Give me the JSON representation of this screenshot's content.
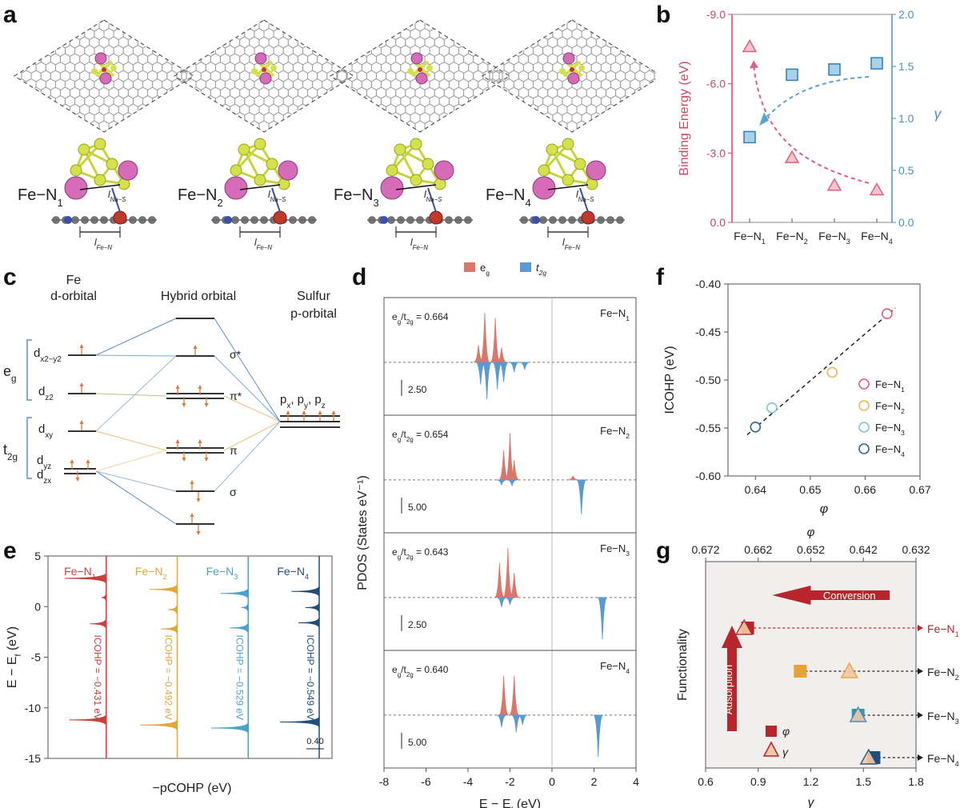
{
  "panels": {
    "a": "a",
    "b": "b",
    "c": "c",
    "d": "d",
    "e": "e",
    "f": "f",
    "g": "g"
  },
  "panel_a": {
    "structures": [
      {
        "label": "Fe−N",
        "sub": "1",
        "bond_top": "l",
        "bond_top_sub": "Na−S",
        "bond_bottom": "l",
        "bond_bottom_sub": "Fe−N"
      },
      {
        "label": "Fe−N",
        "sub": "2",
        "bond_top": "l",
        "bond_top_sub": "Na−S",
        "bond_bottom": "l",
        "bond_bottom_sub": "Fe−N"
      },
      {
        "label": "Fe−N",
        "sub": "3",
        "bond_top": "l",
        "bond_top_sub": "Na−S",
        "bond_bottom": "l",
        "bond_bottom_sub": "Fe−N"
      },
      {
        "label": "Fe−N",
        "sub": "4",
        "bond_top": "l",
        "bond_top_sub": "Na−S",
        "bond_bottom": "l",
        "bond_bottom_sub": "Fe−N"
      }
    ],
    "colors": {
      "S": "#d4e14a",
      "Na": "#d66bb7",
      "Fe": "#c0392b",
      "N": "#3a4fb0",
      "C": "#8a8a8a"
    }
  },
  "panel_c": {
    "left_title_1": "Fe",
    "left_title_2": "d-orbital",
    "mid_title": "Hybrid orbital",
    "right_title_1": "Sulfur",
    "right_title_2": "p-orbital",
    "eg": "e",
    "eg_sub": "g",
    "t2g": "t",
    "t2g_sub": "2g",
    "d_labels": [
      {
        "t": "d",
        "s": "x2−y2"
      },
      {
        "t": "d",
        "s": "z2"
      },
      {
        "t": "d",
        "s": "xy"
      },
      {
        "t": "d",
        "s": "yz"
      },
      {
        "t": "d",
        "s": "zx"
      }
    ],
    "hybrid_labels": [
      "σ*",
      "π*",
      "π",
      "σ"
    ],
    "p_label": "p , p , p",
    "p_subs": [
      "x",
      "y",
      "z"
    ]
  },
  "chart_data": [
    {
      "id": "b",
      "type": "scatter",
      "categories": [
        "Fe−N1",
        "Fe−N2",
        "Fe−N3",
        "Fe−N4"
      ],
      "category_display": [
        {
          "t": "Fe−N",
          "s": "1"
        },
        {
          "t": "Fe−N",
          "s": "2"
        },
        {
          "t": "Fe−N",
          "s": "3"
        },
        {
          "t": "Fe−N",
          "s": "4"
        }
      ],
      "series": [
        {
          "name": "Binding Energy",
          "axis": "left",
          "marker": "triangle",
          "color": "#d9627f",
          "values": [
            -7.6,
            -2.8,
            -1.6,
            -1.4
          ]
        },
        {
          "name": "γ",
          "axis": "right",
          "marker": "square",
          "color": "#5ba3d0",
          "values": [
            0.82,
            1.42,
            1.47,
            1.53
          ]
        }
      ],
      "ylabel_left": "Binding Energy (eV)",
      "ylabel_right": "γ",
      "ylim_left": [
        0.0,
        -9.0
      ],
      "left_ticks": [
        "-9.0",
        "-6.0",
        "-3.0",
        "0.0"
      ],
      "ylim_right": [
        0.0,
        2.0
      ],
      "right_ticks": [
        "2.0",
        "1.5",
        "1.0",
        "0.5",
        "0.0"
      ]
    },
    {
      "id": "d",
      "type": "area",
      "legend": [
        {
          "t": "e",
          "s": "g",
          "color": "#d9776b"
        },
        {
          "t": "t",
          "s": "2g",
          "color": "#5b9ad0"
        }
      ],
      "ylabel": "PDOS (States eV⁻¹)",
      "xlabel": "E − E",
      "xlabel_sub": "f",
      "xlabel_unit": " (eV)",
      "xlim": [
        -8,
        4
      ],
      "xticks": [
        "-8",
        "-6",
        "-4",
        "-2",
        "0",
        "2",
        "4"
      ],
      "subpanels": [
        {
          "label": "Fe−N",
          "sub": "1",
          "ratio": "e",
          "ratio_sub1": "g",
          "ratio_mid": "/t",
          "ratio_sub2": "2g",
          "ratio_val": " = 0.664",
          "scale": "2.50",
          "eg_peaks": [
            [
              -3.5,
              0.35
            ],
            [
              -3.2,
              1.0
            ],
            [
              -2.7,
              0.9
            ],
            [
              -2.4,
              0.3
            ]
          ],
          "t2g_peaks": [
            [
              -3.4,
              -0.45
            ],
            [
              -3.1,
              -0.75
            ],
            [
              -2.6,
              -0.55
            ],
            [
              -2.3,
              -0.4
            ],
            [
              -1.8,
              -0.2
            ],
            [
              -1.3,
              -0.15
            ]
          ]
        },
        {
          "label": "Fe−N",
          "sub": "2",
          "ratio": "e",
          "ratio_sub1": "g",
          "ratio_mid": "/t",
          "ratio_sub2": "2g",
          "ratio_val": " = 0.654",
          "scale": "5.00",
          "eg_peaks": [
            [
              -2.3,
              0.6
            ],
            [
              -2.0,
              0.95
            ],
            [
              -1.8,
              0.4
            ],
            [
              1.0,
              0.08
            ]
          ],
          "t2g_peaks": [
            [
              -2.4,
              -0.1
            ],
            [
              -1.9,
              -0.12
            ],
            [
              1.4,
              -0.7
            ]
          ]
        },
        {
          "label": "Fe−N",
          "sub": "3",
          "ratio": "e",
          "ratio_sub1": "g",
          "ratio_mid": "/t",
          "ratio_sub2": "2g",
          "ratio_val": " = 0.643",
          "scale": "2.50",
          "eg_peaks": [
            [
              -2.5,
              0.7
            ],
            [
              -2.1,
              1.0
            ],
            [
              -1.8,
              0.5
            ]
          ],
          "t2g_peaks": [
            [
              -2.4,
              -0.2
            ],
            [
              -2.0,
              -0.15
            ],
            [
              2.4,
              -0.85
            ]
          ]
        },
        {
          "label": "Fe−N",
          "sub": "4",
          "ratio": "e",
          "ratio_sub1": "g",
          "ratio_mid": "/t",
          "ratio_sub2": "2g",
          "ratio_val": " = 0.640",
          "scale": "5.00",
          "eg_peaks": [
            [
              -2.3,
              0.8
            ],
            [
              -1.8,
              0.8
            ]
          ],
          "t2g_peaks": [
            [
              -2.4,
              -0.25
            ],
            [
              -1.7,
              -0.35
            ],
            [
              -1.4,
              -0.2
            ],
            [
              2.2,
              -0.85
            ]
          ]
        }
      ]
    },
    {
      "id": "e",
      "type": "line",
      "ylabel": "E − E",
      "ylabel_sub": "f",
      "ylabel_unit": " (eV)",
      "xlabel": "−pCOHP (eV)",
      "ylim": [
        -15,
        5
      ],
      "yticks": [
        "5",
        "0",
        "-5",
        "-10",
        "-15"
      ],
      "scale": "0.40",
      "series": [
        {
          "name": "Fe−N",
          "sub": "1",
          "color": "#c8413b",
          "icohp": "ICOHP = −0.431 eV",
          "peaks": [
            [
              2.8,
              -0.9
            ],
            [
              0.9,
              -0.1
            ],
            [
              -1.7,
              -0.35
            ],
            [
              -11.2,
              -0.8
            ]
          ]
        },
        {
          "name": "Fe−N",
          "sub": "2",
          "color": "#e3a63a",
          "icohp": "ICOHP = −0.492 eV",
          "peaks": [
            [
              1.7,
              -0.6
            ],
            [
              -0.3,
              -0.2
            ],
            [
              -2.2,
              -0.35
            ],
            [
              -11.7,
              -0.8
            ]
          ]
        },
        {
          "name": "Fe−N",
          "sub": "3",
          "color": "#4aa3c8",
          "icohp": "ICOHP = −0.529 eV",
          "peaks": [
            [
              1.3,
              -0.6
            ],
            [
              -0.1,
              -0.15
            ],
            [
              -2.1,
              -0.4
            ],
            [
              -12.0,
              -0.8
            ]
          ]
        },
        {
          "name": "Fe−N",
          "sub": "4",
          "color": "#1f4f7a",
          "icohp": "ICOHP = −0.549 eV",
          "peaks": [
            [
              1.5,
              -0.6
            ],
            [
              -0.1,
              -0.3
            ],
            [
              -1.6,
              -0.45
            ],
            [
              -11.4,
              -0.85
            ]
          ]
        }
      ]
    },
    {
      "id": "f",
      "type": "scatter",
      "xlabel": "φ",
      "ylabel": "ICOHP (eV)",
      "xlim": [
        0.635,
        0.67
      ],
      "ylim": [
        -0.6,
        -0.4
      ],
      "xticks": [
        "0.64",
        "0.65",
        "0.66",
        "0.67"
      ],
      "yticks": [
        "-0.40",
        "-0.45",
        "-0.50",
        "-0.55",
        "-0.60"
      ],
      "points": [
        {
          "name": "Fe−N",
          "sub": "1",
          "x": 0.664,
          "y": -0.431,
          "color": "#d9627f"
        },
        {
          "name": "Fe−N",
          "sub": "2",
          "x": 0.654,
          "y": -0.492,
          "color": "#e8b85a"
        },
        {
          "name": "Fe−N",
          "sub": "3",
          "x": 0.643,
          "y": -0.529,
          "color": "#7ec4df"
        },
        {
          "name": "Fe−N",
          "sub": "4",
          "x": 0.64,
          "y": -0.549,
          "color": "#2b6a9a"
        }
      ]
    },
    {
      "id": "g",
      "type": "scatter",
      "top_xlabel": "φ",
      "top_xticks": [
        "0.672",
        "0.662",
        "0.652",
        "0.642",
        "0.632"
      ],
      "top_xlim": [
        0.672,
        0.632
      ],
      "xlabel": "γ",
      "xticks": [
        "0.6",
        "0.9",
        "1.2",
        "1.5",
        "1.8"
      ],
      "xlim": [
        0.6,
        1.8
      ],
      "ylabel": "Functionality",
      "arrow_h": "Conversion",
      "arrow_v": "Adsorption",
      "legend": [
        {
          "label": "φ",
          "marker": "square"
        },
        {
          "label": "γ",
          "marker": "triangle"
        }
      ],
      "rows": [
        {
          "name": "Fe−N",
          "sub": "1",
          "color": "#b8252c",
          "phi": 0.664,
          "gamma": 0.82
        },
        {
          "name": "Fe−N",
          "sub": "2",
          "color": "#e6a232",
          "phi": 0.654,
          "gamma": 1.42
        },
        {
          "name": "Fe−N",
          "sub": "3",
          "color": "#3a93b4",
          "phi": 0.643,
          "gamma": 1.47
        },
        {
          "name": "Fe−N",
          "sub": "4",
          "color": "#1f4f7a",
          "phi": 0.64,
          "gamma": 1.53
        }
      ]
    }
  ]
}
